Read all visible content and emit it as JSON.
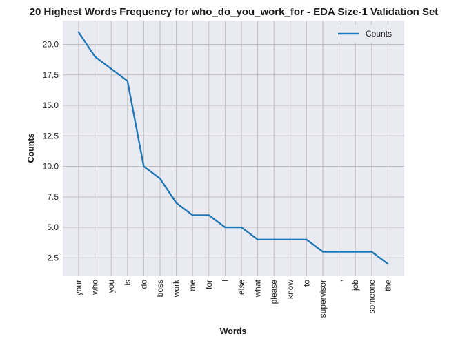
{
  "chart_data": {
    "type": "line",
    "title": "20 Highest Words Frequency for who_do_you_work_for - EDA Size-1 Validation Set",
    "xlabel": "Words",
    "ylabel": "Counts",
    "categories": [
      "your",
      "who",
      "you",
      "is",
      "do",
      "boss",
      "work",
      "me",
      "for",
      "i",
      "else",
      "what",
      "please",
      "know",
      "to",
      "supervisor",
      ",",
      "job",
      "someone",
      "the"
    ],
    "series": [
      {
        "name": "Counts",
        "values": [
          21,
          19,
          18,
          17,
          10,
          9,
          7,
          6,
          6,
          5,
          5,
          4,
          4,
          4,
          4,
          3,
          3,
          3,
          3,
          2
        ],
        "color": "#1f77b4"
      }
    ],
    "yticks": [
      "2.5",
      "5.0",
      "7.5",
      "10.0",
      "12.5",
      "15.0",
      "17.5",
      "20.0"
    ],
    "ylim": [
      1.05,
      21.95
    ],
    "grid": true,
    "legend_position": "top-right",
    "background": "#eaeaf2",
    "grid_color": "#bfbfbf"
  }
}
